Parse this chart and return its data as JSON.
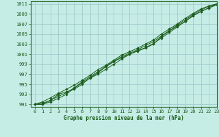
{
  "title": "Graphe pression niveau de la mer (hPa)",
  "bg_color": "#c6ece6",
  "grid_color": "#a0cccc",
  "line_color": "#1a5c1a",
  "marker_color": "#1a5c1a",
  "xlim": [
    -0.5,
    23
  ],
  "ylim": [
    990.5,
    1011.5
  ],
  "yticks": [
    991,
    993,
    995,
    997,
    999,
    1001,
    1003,
    1005,
    1007,
    1009,
    1011
  ],
  "xticks": [
    0,
    1,
    2,
    3,
    4,
    5,
    6,
    7,
    8,
    9,
    10,
    11,
    12,
    13,
    14,
    15,
    16,
    17,
    18,
    19,
    20,
    21,
    22,
    23
  ],
  "lines": [
    [
      991.0,
      991.2,
      991.8,
      992.6,
      993.3,
      994.3,
      995.5,
      996.5,
      997.5,
      998.6,
      999.6,
      1000.5,
      1001.2,
      1001.9,
      1002.7,
      1003.5,
      1004.6,
      1005.7,
      1006.8,
      1007.8,
      1008.9,
      1009.8,
      1010.5,
      1011.0
    ],
    [
      991.0,
      991.0,
      991.5,
      992.2,
      993.0,
      994.2,
      995.3,
      996.2,
      997.0,
      998.0,
      999.0,
      1000.0,
      1001.0,
      1001.7,
      1002.3,
      1003.1,
      1004.2,
      1005.3,
      1006.4,
      1007.5,
      1008.6,
      1009.5,
      1010.2,
      1010.8
    ],
    [
      991.0,
      991.0,
      991.8,
      993.0,
      993.5,
      994.0,
      995.0,
      996.3,
      997.3,
      998.5,
      999.5,
      1000.3,
      1001.0,
      1001.6,
      1002.2,
      1003.0,
      1004.5,
      1005.6,
      1006.6,
      1007.5,
      1008.7,
      1009.5,
      1010.2,
      1011.0
    ],
    [
      991.0,
      991.5,
      992.3,
      993.2,
      994.0,
      994.8,
      995.8,
      996.8,
      997.9,
      998.8,
      999.8,
      1000.8,
      1001.5,
      1002.2,
      1003.0,
      1003.8,
      1005.0,
      1006.0,
      1007.0,
      1008.1,
      1009.1,
      1010.0,
      1010.6,
      1011.0
    ]
  ]
}
